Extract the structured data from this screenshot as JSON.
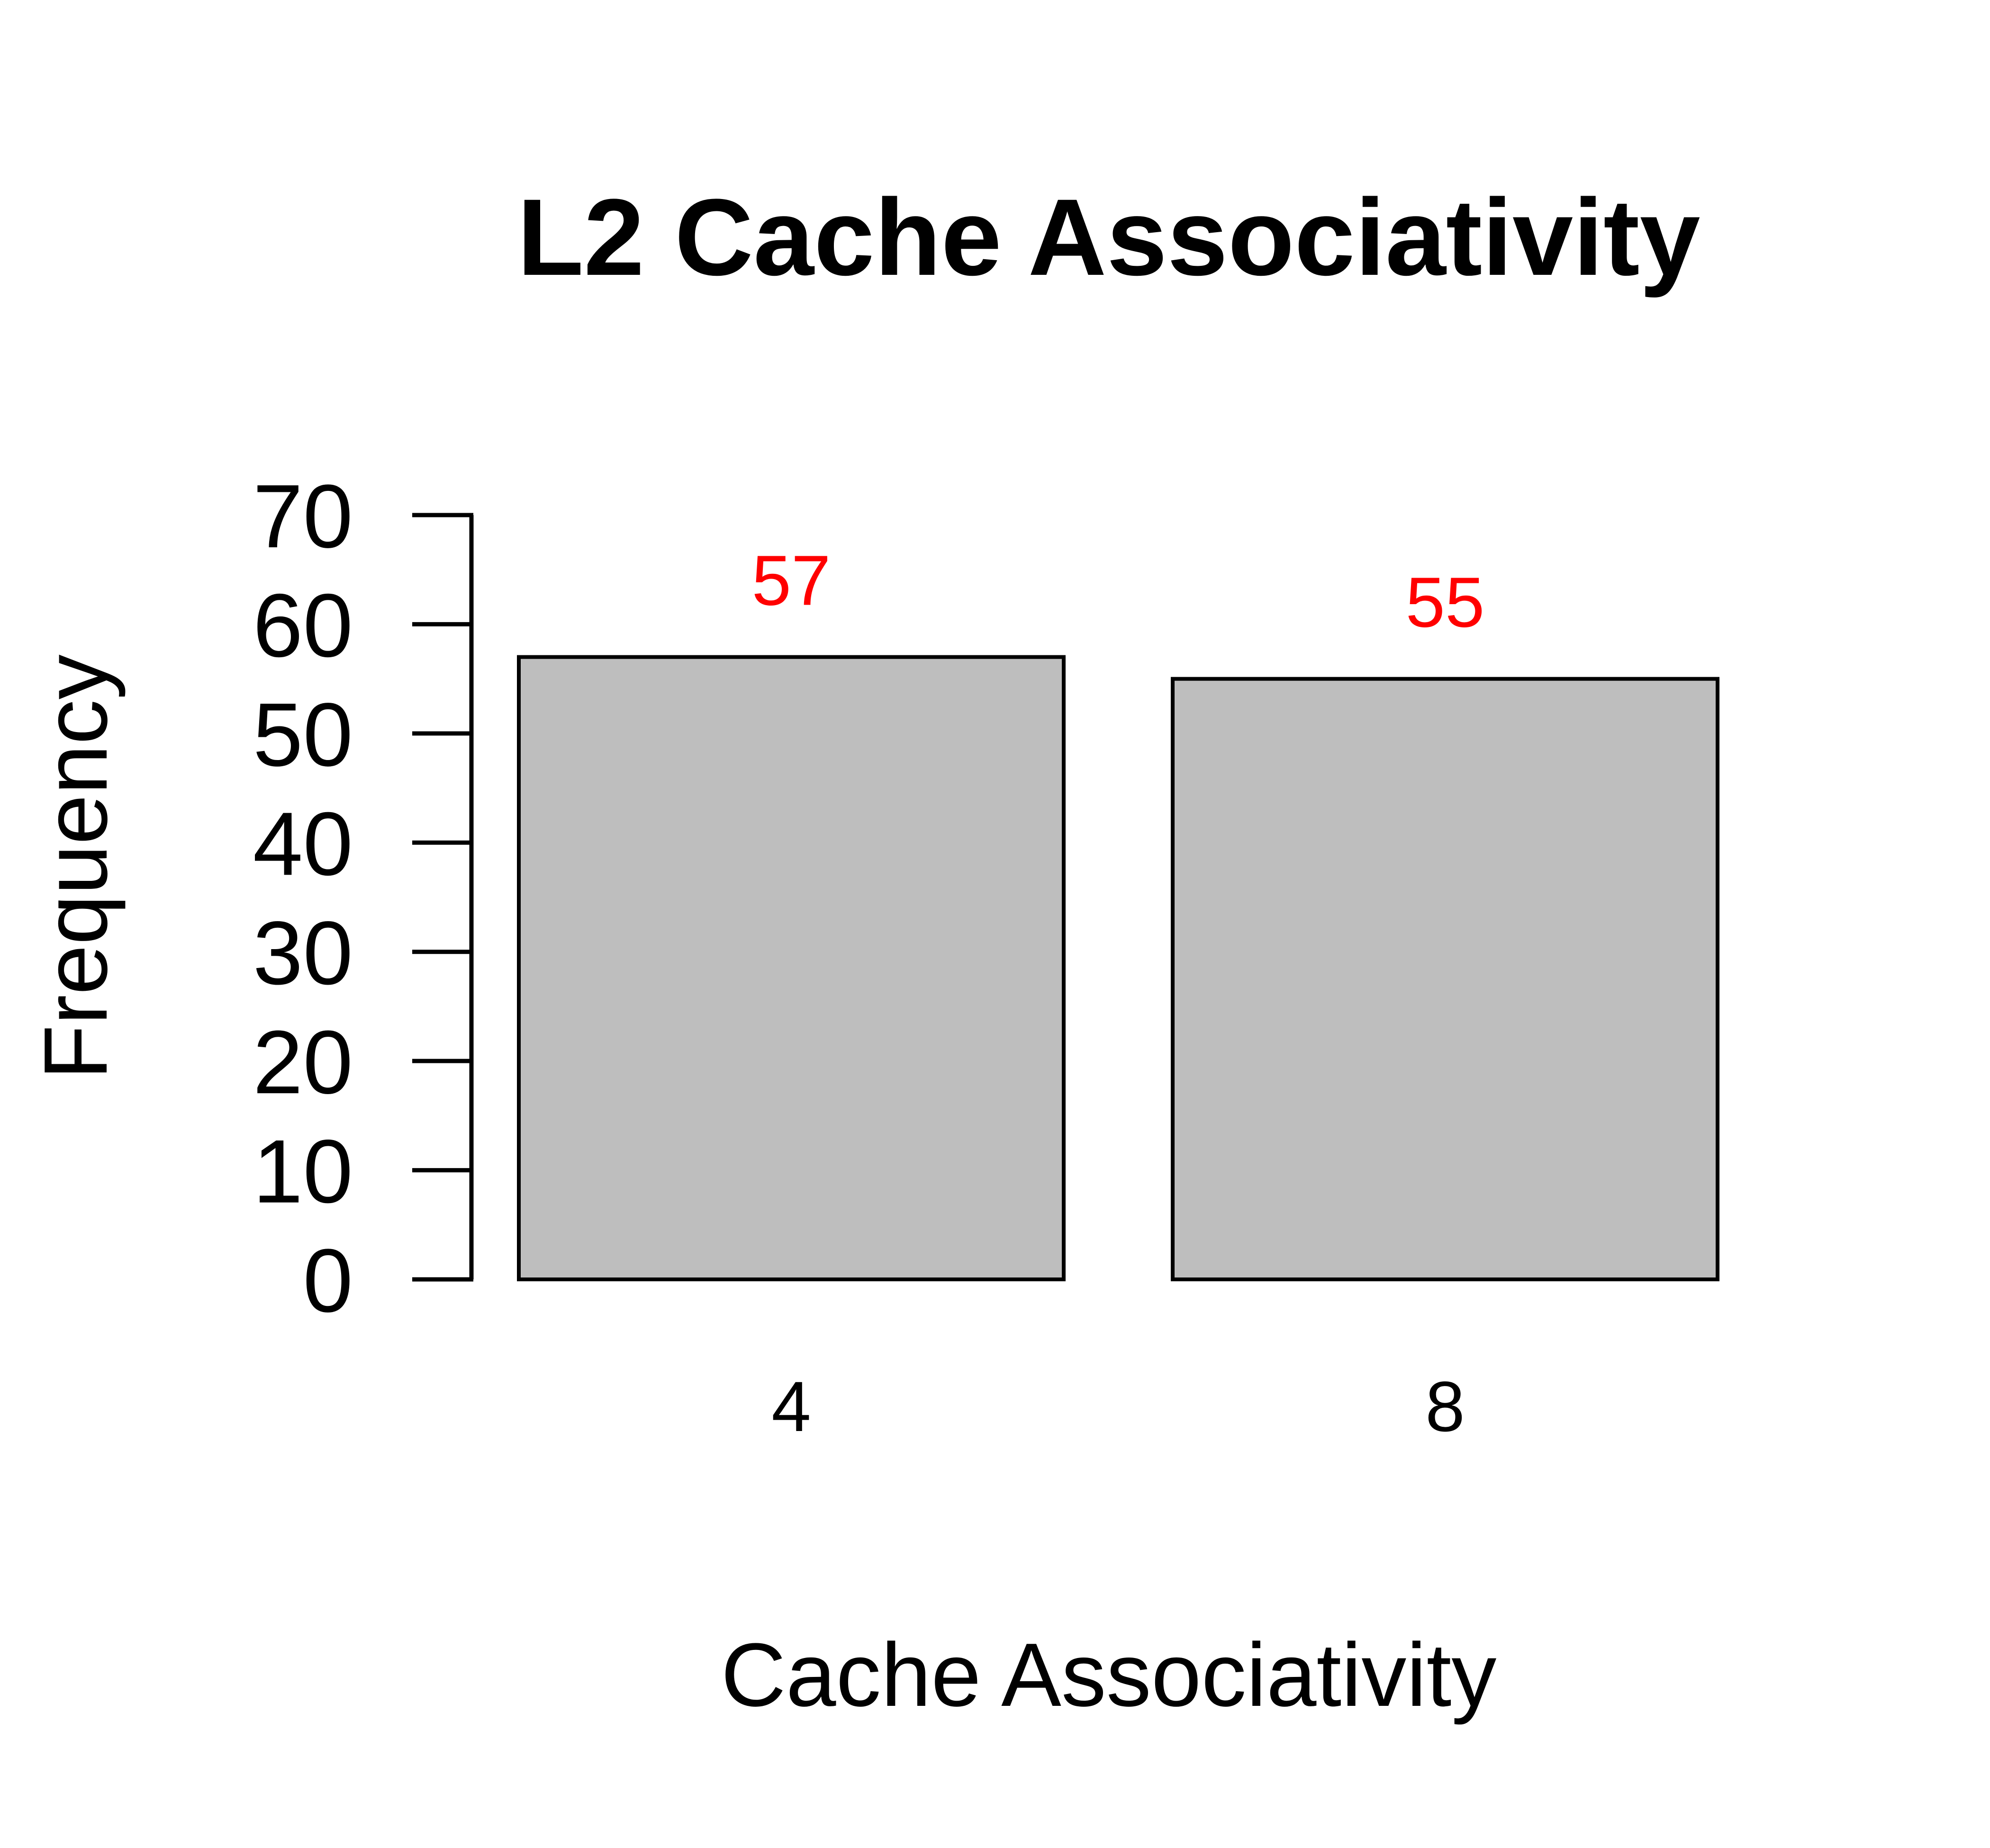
{
  "chart_data": {
    "type": "bar",
    "title": "L2 Cache Associativity",
    "xlabel": "Cache Associativity",
    "ylabel": "Frequency",
    "categories": [
      "4",
      "8"
    ],
    "values": [
      57,
      55
    ],
    "data_labels": [
      "57",
      "55"
    ],
    "ylim": [
      0,
      70
    ],
    "yticks": [
      0,
      10,
      20,
      30,
      40,
      50,
      60,
      70
    ],
    "ytick_labels": [
      "0",
      "10",
      "20",
      "30",
      "40",
      "50",
      "60",
      "70"
    ],
    "grid": false,
    "legend": "none",
    "colors": {
      "bar_fill": "#bebebe",
      "bar_stroke": "#000000",
      "data_label": "#ff0000",
      "axis": "#000000"
    }
  }
}
